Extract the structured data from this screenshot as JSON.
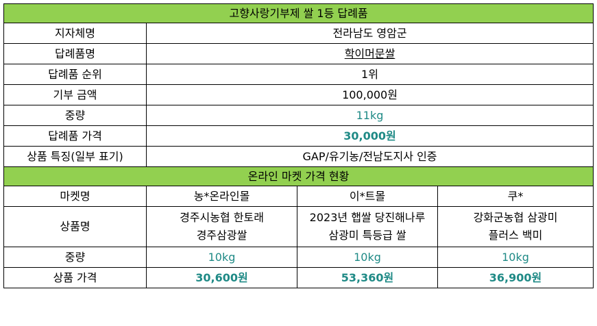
{
  "gift": {
    "title": "고향사랑기부제 쌀 1등 답례품",
    "rows": [
      {
        "label": "지자체명",
        "value": "전라남도 영암군"
      },
      {
        "label": "답례품명",
        "value": "학이머문쌀"
      },
      {
        "label": "답례품 순위",
        "value": "1위"
      },
      {
        "label": "기부 금액",
        "value": "100,000원"
      },
      {
        "label": "중량",
        "value": "11kg"
      },
      {
        "label": "답례품 가격",
        "value": "30,000원"
      },
      {
        "label": "상품 특징(일부 표기)",
        "value": "GAP/유기농/전남도지사 인증"
      }
    ]
  },
  "market": {
    "title": "온라인 마켓 가격 현황",
    "labels": {
      "name": "마켓명",
      "product": "상품명",
      "weight": "중량",
      "price": "상품 가격"
    },
    "columns": [
      {
        "market": "농*온라인몰",
        "product_line1": "경주시농협 한토래",
        "product_line2": "경주삼광쌀",
        "weight": "10kg",
        "price": "30,600원"
      },
      {
        "market": "이*트몰",
        "product_line1": "2023년 햅쌀 당진해나루",
        "product_line2": "삼광미 특등급 쌀",
        "weight": "10kg",
        "price": "53,360원"
      },
      {
        "market": "쿠*",
        "product_line1": "강화군농협 삼광미",
        "product_line2": "플러스 백미",
        "weight": "10kg",
        "price": "36,900원"
      }
    ]
  },
  "colors": {
    "header_bg": "#92d050",
    "accent_teal": "#1f8a86"
  }
}
